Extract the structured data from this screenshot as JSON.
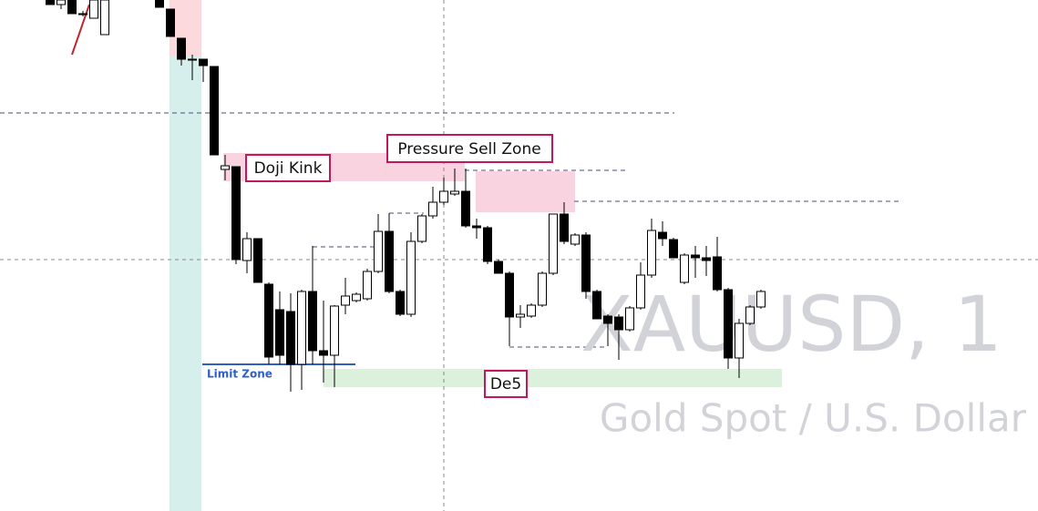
{
  "chart_data": {
    "type": "candlestick",
    "symbol": "XAUUSD, 1",
    "description": "Gold Spot / U.S. Dollar",
    "annotations": [
      "Pressure Sell Zone",
      "Doji Kink",
      "Limit Zone",
      "De5"
    ],
    "up_color": "#ffffff",
    "down_color": "#000000",
    "ylim": [
      0,
      561
    ],
    "ohlc": [
      [
        561,
        561,
        556,
        556
      ],
      [
        556,
        561,
        551,
        561
      ],
      [
        561,
        561,
        546,
        546
      ],
      [
        546,
        549,
        543,
        546
      ],
      [
        541,
        561,
        541,
        561
      ],
      [
        523,
        561,
        523,
        561
      ],
      null,
      null,
      null,
      null,
      [
        561,
        561,
        553,
        553
      ],
      [
        551,
        551,
        521,
        521
      ],
      [
        519,
        519,
        489,
        496
      ],
      [
        496,
        501,
        473,
        495
      ],
      [
        496,
        496,
        471,
        489
      ],
      [
        488,
        488,
        391,
        391
      ],
      [
        375,
        391,
        363,
        379
      ],
      [
        378,
        378,
        271,
        276
      ],
      [
        275,
        306,
        261,
        299
      ],
      [
        299,
        299,
        251,
        251
      ],
      [
        249,
        251,
        161,
        169
      ],
      [
        221,
        241,
        161,
        171
      ],
      [
        219,
        239,
        131,
        161
      ],
      [
        161,
        243,
        133,
        241
      ],
      [
        241,
        291,
        161,
        176
      ],
      [
        176,
        231,
        141,
        171
      ],
      [
        171,
        226,
        136,
        225
      ],
      [
        226,
        256,
        216,
        236
      ],
      [
        231,
        240,
        229,
        238
      ],
      [
        233,
        266,
        231,
        263
      ],
      [
        263,
        326,
        261,
        307
      ],
      [
        307,
        327,
        239,
        241
      ],
      [
        241,
        243,
        214,
        216
      ],
      [
        216,
        306,
        213,
        296
      ],
      [
        296,
        326,
        294,
        324
      ],
      [
        324,
        356,
        321,
        339
      ],
      [
        339,
        366,
        336,
        351
      ],
      [
        348,
        376,
        346,
        351
      ],
      [
        351,
        376,
        311,
        313
      ],
      [
        313,
        321,
        299,
        311
      ],
      [
        311,
        313,
        271,
        274
      ],
      [
        274,
        276,
        261,
        261
      ],
      [
        261,
        263,
        181,
        213
      ],
      [
        213,
        226,
        201,
        216
      ],
      [
        214,
        228,
        212,
        226
      ],
      [
        226,
        263,
        224,
        261
      ],
      [
        261,
        326,
        259,
        326
      ],
      [
        326,
        339,
        293,
        296
      ],
      [
        293,
        305,
        291,
        303
      ],
      [
        303,
        306,
        233,
        241
      ],
      [
        241,
        243,
        211,
        211
      ],
      [
        214,
        216,
        181,
        206
      ],
      [
        213,
        216,
        166,
        199
      ],
      [
        199,
        225,
        197,
        223
      ],
      [
        223,
        273,
        221,
        259
      ],
      [
        259,
        321,
        256,
        308
      ],
      [
        306,
        318,
        291,
        299
      ],
      [
        298,
        300,
        278,
        278
      ],
      [
        251,
        283,
        249,
        281
      ],
      [
        281,
        291,
        256,
        278
      ],
      [
        278,
        291,
        258,
        275
      ],
      [
        279,
        301,
        241,
        243
      ],
      [
        243,
        245,
        156,
        168
      ],
      [
        168,
        211,
        146,
        206
      ],
      [
        206,
        226,
        204,
        224
      ],
      [
        224,
        243,
        222,
        241
      ]
    ]
  }
}
